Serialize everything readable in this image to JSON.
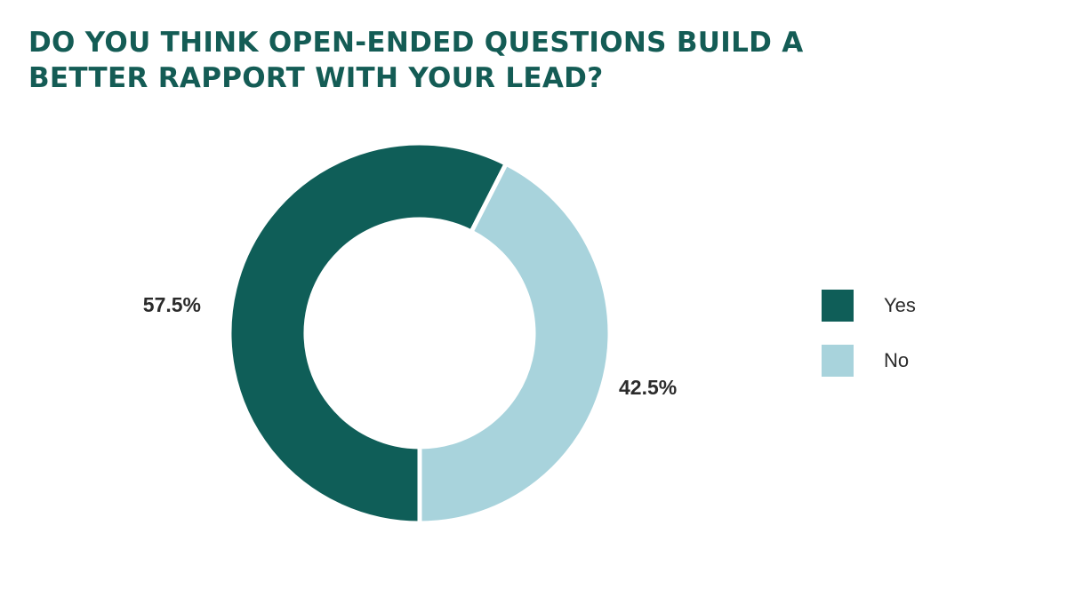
{
  "title": "DO YOU THINK OPEN-ENDED QUESTIONS BUILD A BETTER RAPPORT WITH YOUR LEAD?",
  "colors": {
    "title": "#145c55",
    "yes": "#0f5e58",
    "no": "#a8d3dc",
    "separator": "#ffffff"
  },
  "chart_data": {
    "type": "pie",
    "variant": "donut",
    "categories": [
      "Yes",
      "No"
    ],
    "values": [
      57.5,
      42.5
    ],
    "data_labels": [
      "57.5%",
      "42.5%"
    ],
    "legend_placement": "right"
  },
  "legend": [
    {
      "label": "Yes",
      "color_key": "yes"
    },
    {
      "label": "No",
      "color_key": "no"
    }
  ]
}
